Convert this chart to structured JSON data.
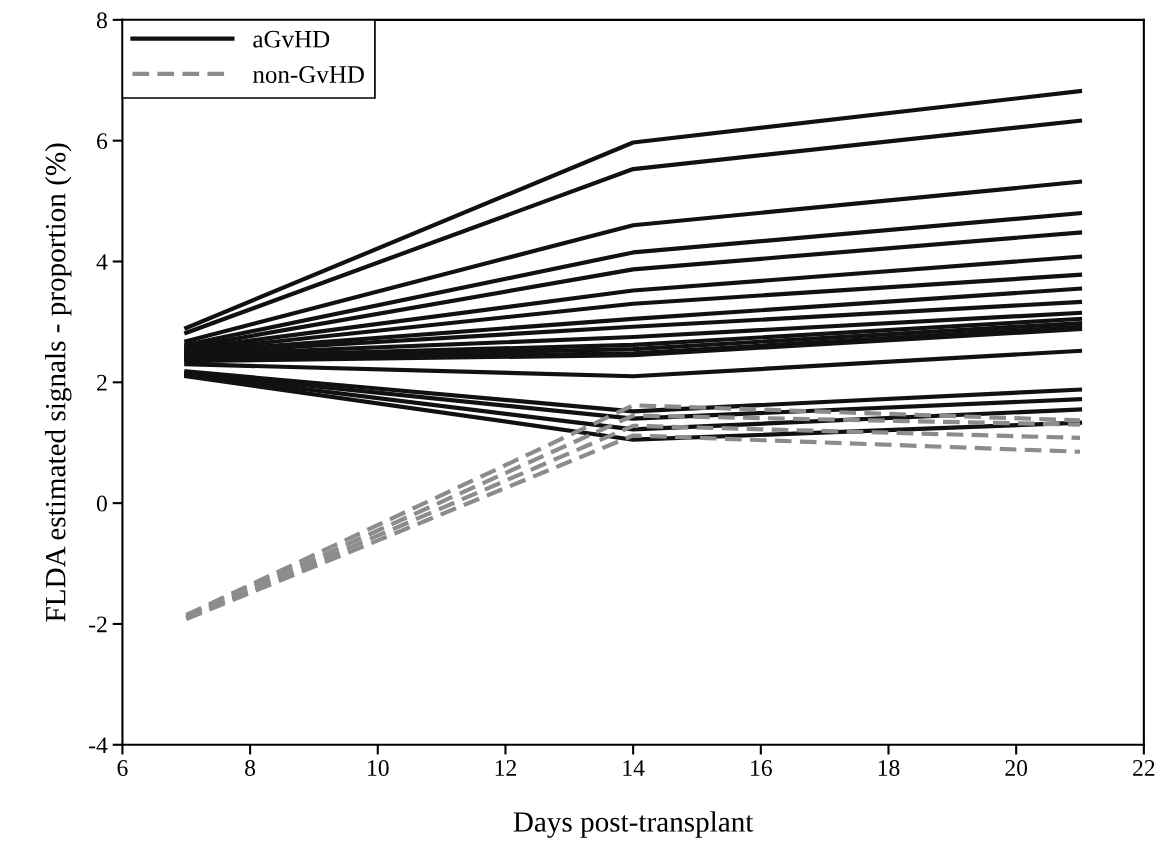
{
  "chart_data": {
    "type": "line",
    "xlabel": "Days post-transplant",
    "ylabel": "FLDA estimated signals - proportion (%)",
    "x": [
      7,
      14,
      21
    ],
    "xlim": [
      6,
      22
    ],
    "xticks": [
      6,
      8,
      10,
      12,
      14,
      16,
      18,
      20,
      22
    ],
    "ylim": [
      -4,
      8
    ],
    "yticks": [
      -4,
      -2,
      0,
      2,
      4,
      6,
      8
    ],
    "grid": false,
    "legend": "top left",
    "marker": "none",
    "series": [
      {
        "name": "aGvHD",
        "color": "#111111",
        "line_style": "solid",
        "values": [
          2.9,
          5.97,
          6.82
        ]
      },
      {
        "color": "#111111",
        "line_style": "solid",
        "values": [
          2.82,
          5.53,
          6.33
        ]
      },
      {
        "color": "#111111",
        "line_style": "solid",
        "values": [
          2.68,
          4.6,
          5.32
        ]
      },
      {
        "color": "#111111",
        "line_style": "solid",
        "values": [
          2.62,
          4.15,
          4.8
        ]
      },
      {
        "color": "#111111",
        "line_style": "solid",
        "values": [
          2.58,
          3.87,
          4.48
        ]
      },
      {
        "color": "#111111",
        "line_style": "solid",
        "values": [
          2.55,
          3.52,
          4.08
        ]
      },
      {
        "color": "#111111",
        "line_style": "solid",
        "values": [
          2.52,
          3.3,
          3.78
        ]
      },
      {
        "color": "#111111",
        "line_style": "solid",
        "values": [
          2.5,
          3.05,
          3.55
        ]
      },
      {
        "color": "#111111",
        "line_style": "solid",
        "values": [
          2.48,
          2.92,
          3.33
        ]
      },
      {
        "color": "#111111",
        "line_style": "solid",
        "values": [
          2.45,
          2.75,
          3.15
        ]
      },
      {
        "color": "#111111",
        "line_style": "solid",
        "values": [
          2.42,
          2.62,
          3.05
        ]
      },
      {
        "color": "#111111",
        "line_style": "solid",
        "values": [
          2.4,
          2.55,
          2.98
        ]
      },
      {
        "color": "#111111",
        "line_style": "solid",
        "values": [
          2.38,
          2.48,
          2.92
        ]
      },
      {
        "color": "#111111",
        "line_style": "solid",
        "values": [
          2.35,
          2.45,
          2.88
        ]
      },
      {
        "color": "#111111",
        "line_style": "solid",
        "values": [
          2.3,
          2.1,
          2.52
        ]
      },
      {
        "color": "#111111",
        "line_style": "solid",
        "values": [
          2.18,
          1.52,
          1.88
        ]
      },
      {
        "color": "#111111",
        "line_style": "solid",
        "values": [
          2.15,
          1.4,
          1.72
        ]
      },
      {
        "color": "#111111",
        "line_style": "solid",
        "values": [
          2.13,
          1.22,
          1.55
        ]
      },
      {
        "color": "#111111",
        "line_style": "solid",
        "values": [
          2.1,
          1.05,
          1.33
        ]
      },
      {
        "name": "non-GvHD",
        "color": "#8c8c8c",
        "line_style": "dashed",
        "values": [
          -1.85,
          1.62,
          1.37
        ]
      },
      {
        "color": "#8c8c8c",
        "line_style": "dashed",
        "values": [
          -1.88,
          1.45,
          1.3
        ]
      },
      {
        "color": "#8c8c8c",
        "line_style": "dashed",
        "values": [
          -1.9,
          1.28,
          1.08
        ]
      },
      {
        "color": "#8c8c8c",
        "line_style": "dashed",
        "values": [
          -1.92,
          1.12,
          0.85
        ]
      }
    ]
  }
}
